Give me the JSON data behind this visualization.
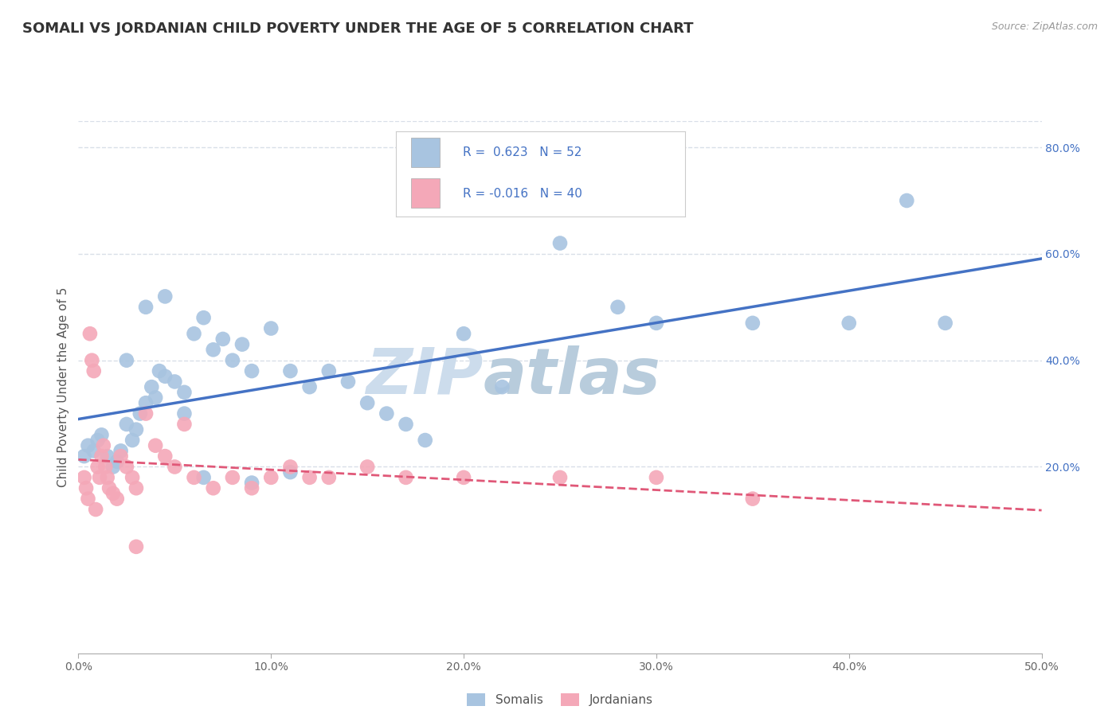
{
  "title": "SOMALI VS JORDANIAN CHILD POVERTY UNDER THE AGE OF 5 CORRELATION CHART",
  "source": "Source: ZipAtlas.com",
  "ylabel_label": "Child Poverty Under the Age of 5",
  "xlim": [
    0.0,
    50.0
  ],
  "ylim": [
    -15.0,
    85.0
  ],
  "somali_color": "#a8c4e0",
  "jordanian_color": "#f4a8b8",
  "somali_line_color": "#4472c4",
  "jordanian_line_color": "#e05878",
  "watermark_top": "ZIP",
  "watermark_bot": "atlas",
  "watermark_color": "#ccdcec",
  "legend_R_somali": "0.623",
  "legend_N_somali": "52",
  "legend_R_jordanian": "-0.016",
  "legend_N_jordanian": "40",
  "somali_x": [
    0.3,
    0.5,
    0.8,
    1.0,
    1.2,
    1.5,
    1.8,
    2.0,
    2.2,
    2.5,
    2.8,
    3.0,
    3.2,
    3.5,
    3.8,
    4.0,
    4.2,
    4.5,
    5.0,
    5.5,
    6.0,
    6.5,
    7.0,
    7.5,
    8.0,
    8.5,
    9.0,
    10.0,
    11.0,
    12.0,
    13.0,
    14.0,
    15.0,
    16.0,
    17.0,
    18.0,
    20.0,
    22.0,
    25.0,
    28.0,
    30.0,
    35.0,
    40.0,
    43.0,
    45.0,
    2.5,
    3.5,
    4.5,
    5.5,
    6.5,
    9.0,
    11.0
  ],
  "somali_y": [
    22.0,
    24.0,
    23.0,
    25.0,
    26.0,
    22.0,
    20.0,
    21.0,
    23.0,
    28.0,
    25.0,
    27.0,
    30.0,
    32.0,
    35.0,
    33.0,
    38.0,
    37.0,
    36.0,
    34.0,
    45.0,
    48.0,
    42.0,
    44.0,
    40.0,
    43.0,
    38.0,
    46.0,
    38.0,
    35.0,
    38.0,
    36.0,
    32.0,
    30.0,
    28.0,
    25.0,
    45.0,
    35.0,
    62.0,
    50.0,
    47.0,
    47.0,
    47.0,
    70.0,
    47.0,
    40.0,
    50.0,
    52.0,
    30.0,
    18.0,
    17.0,
    19.0
  ],
  "jordanian_x": [
    0.3,
    0.4,
    0.5,
    0.6,
    0.7,
    0.8,
    0.9,
    1.0,
    1.1,
    1.2,
    1.3,
    1.4,
    1.5,
    1.6,
    1.8,
    2.0,
    2.2,
    2.5,
    2.8,
    3.0,
    3.5,
    4.0,
    4.5,
    5.0,
    5.5,
    6.0,
    7.0,
    8.0,
    9.0,
    10.0,
    11.0,
    12.0,
    13.0,
    15.0,
    17.0,
    20.0,
    25.0,
    30.0,
    35.0,
    3.0
  ],
  "jordanian_y": [
    18.0,
    16.0,
    14.0,
    45.0,
    40.0,
    38.0,
    12.0,
    20.0,
    18.0,
    22.0,
    24.0,
    20.0,
    18.0,
    16.0,
    15.0,
    14.0,
    22.0,
    20.0,
    18.0,
    16.0,
    30.0,
    24.0,
    22.0,
    20.0,
    28.0,
    18.0,
    16.0,
    18.0,
    16.0,
    18.0,
    20.0,
    18.0,
    18.0,
    20.0,
    18.0,
    18.0,
    18.0,
    18.0,
    14.0,
    5.0
  ],
  "grid_color": "#d8dfe8",
  "background_color": "#ffffff",
  "title_fontsize": 13,
  "axis_label_fontsize": 11,
  "tick_fontsize": 10,
  "legend_fontsize": 12
}
